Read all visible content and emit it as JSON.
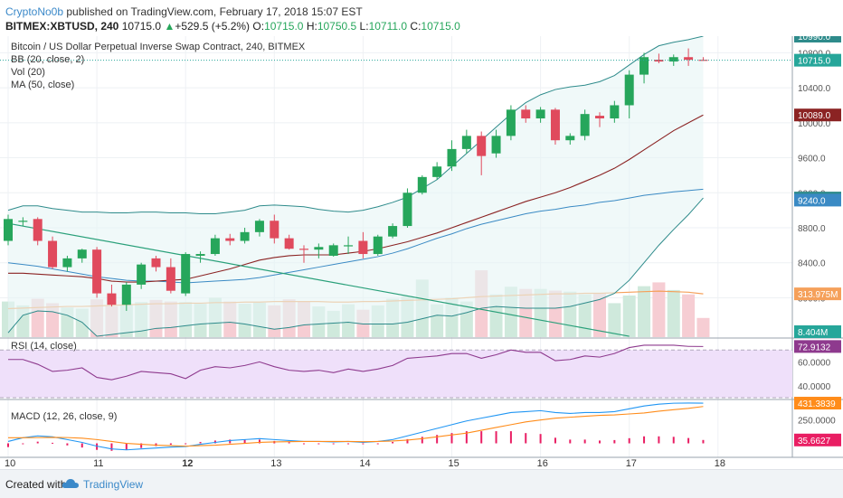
{
  "header": {
    "author": "CryptoNo0b",
    "published": "published on TradingView.com, February 17, 2018 15:07 EST",
    "symbol": "BITMEX:XBTUSD, 240",
    "last": "10715.0",
    "change_arrow": "▲",
    "change": "+529.5 (+5.2%)",
    "o_label": "O:",
    "o": "10715.0",
    "h_label": "H:",
    "h": "10750.5",
    "l_label": "L:",
    "l": "10711.0",
    "c_label": "C:",
    "c": "10715.0"
  },
  "legend": {
    "title": "Bitcoin / US Dollar Perpetual Inverse Swap Contract, 240, BITMEX",
    "bb": "BB (20, close, 2)",
    "vol": "Vol (20)",
    "ma": "MA (50, close)",
    "rsi": "RSI (14, close)",
    "macd": "MACD (12, 26, close, 9)"
  },
  "footer": {
    "created": "Created with",
    "brand": "TradingView"
  },
  "colors": {
    "up": "#26a65b",
    "down": "#e04a5d",
    "bb": "#2e8b8b",
    "bb_fill": "#e6f5f5",
    "ma": "#8b2323",
    "vol_ma": "#f5a05a",
    "rsi": "#8e3a8e",
    "rsi_fill": "#efe0fa",
    "macd": "#2196f3",
    "signal": "#ff8c1a",
    "hist": "#e91e63",
    "trendline": "#2aa07a"
  },
  "chart_data": [
    {
      "type": "candlestick",
      "title": "Bitcoin / US Dollar Perpetual Inverse Swap Contract, 240, BITMEX",
      "ylim": [
        7550,
        10990
      ],
      "yticks": [
        8000,
        8400,
        8800,
        9200,
        9600,
        10000,
        10400,
        10800
      ],
      "ytick_labels": [
        "8000.0",
        "8400.0",
        "8800.0",
        "9200.0",
        "9600.0",
        "10000.0",
        "10400.0",
        "10800.0"
      ],
      "x_labels": [
        {
          "i": 0,
          "label": "10",
          "bold": false
        },
        {
          "i": 6,
          "label": "11",
          "bold": false
        },
        {
          "i": 12,
          "label": "12",
          "bold": true
        },
        {
          "i": 18,
          "label": "13",
          "bold": false
        },
        {
          "i": 24,
          "label": "14",
          "bold": false
        },
        {
          "i": 30,
          "label": "15",
          "bold": false
        },
        {
          "i": 36,
          "label": "16",
          "bold": false
        },
        {
          "i": 42,
          "label": "17",
          "bold": false
        },
        {
          "i": 48,
          "label": "18",
          "bold": false
        }
      ],
      "candles": [
        {
          "o": 8650,
          "h": 8950,
          "l": 8600,
          "c": 8900
        },
        {
          "o": 8880,
          "h": 8920,
          "l": 8820,
          "c": 8880
        },
        {
          "o": 8900,
          "h": 8920,
          "l": 8600,
          "c": 8650
        },
        {
          "o": 8650,
          "h": 8700,
          "l": 8330,
          "c": 8350
        },
        {
          "o": 8350,
          "h": 8480,
          "l": 8300,
          "c": 8450
        },
        {
          "o": 8450,
          "h": 8560,
          "l": 8400,
          "c": 8550
        },
        {
          "o": 8550,
          "h": 8580,
          "l": 8000,
          "c": 8050
        },
        {
          "o": 8050,
          "h": 8150,
          "l": 7900,
          "c": 7920
        },
        {
          "o": 7920,
          "h": 8180,
          "l": 7850,
          "c": 8150
        },
        {
          "o": 8150,
          "h": 8400,
          "l": 8100,
          "c": 8380
        },
        {
          "o": 8450,
          "h": 8480,
          "l": 8300,
          "c": 8350
        },
        {
          "o": 8350,
          "h": 8450,
          "l": 8050,
          "c": 8080
        },
        {
          "o": 8050,
          "h": 8520,
          "l": 8020,
          "c": 8500
        },
        {
          "o": 8480,
          "h": 8530,
          "l": 8400,
          "c": 8500
        },
        {
          "o": 8500,
          "h": 8720,
          "l": 8480,
          "c": 8680
        },
        {
          "o": 8680,
          "h": 8730,
          "l": 8600,
          "c": 8650
        },
        {
          "o": 8650,
          "h": 8800,
          "l": 8620,
          "c": 8750
        },
        {
          "o": 8750,
          "h": 8900,
          "l": 8700,
          "c": 8880
        },
        {
          "o": 8880,
          "h": 8950,
          "l": 8620,
          "c": 8680
        },
        {
          "o": 8680,
          "h": 8720,
          "l": 8550,
          "c": 8560
        },
        {
          "o": 8560,
          "h": 8600,
          "l": 8400,
          "c": 8550
        },
        {
          "o": 8550,
          "h": 8620,
          "l": 8450,
          "c": 8580
        },
        {
          "o": 8480,
          "h": 8620,
          "l": 8470,
          "c": 8600
        },
        {
          "o": 8600,
          "h": 8700,
          "l": 8500,
          "c": 8600
        },
        {
          "o": 8650,
          "h": 8750,
          "l": 8450,
          "c": 8500
        },
        {
          "o": 8500,
          "h": 8720,
          "l": 8480,
          "c": 8700
        },
        {
          "o": 8700,
          "h": 8850,
          "l": 8680,
          "c": 8820
        },
        {
          "o": 8820,
          "h": 9250,
          "l": 8800,
          "c": 9200
        },
        {
          "o": 9200,
          "h": 9400,
          "l": 9180,
          "c": 9380
        },
        {
          "o": 9380,
          "h": 9550,
          "l": 9350,
          "c": 9500
        },
        {
          "o": 9500,
          "h": 9800,
          "l": 9450,
          "c": 9700
        },
        {
          "o": 9700,
          "h": 9920,
          "l": 9650,
          "c": 9850
        },
        {
          "o": 9850,
          "h": 9900,
          "l": 9400,
          "c": 9620
        },
        {
          "o": 9650,
          "h": 9920,
          "l": 9600,
          "c": 9850
        },
        {
          "o": 9850,
          "h": 10200,
          "l": 9800,
          "c": 10150
        },
        {
          "o": 10150,
          "h": 10200,
          "l": 10000,
          "c": 10050
        },
        {
          "o": 10050,
          "h": 10180,
          "l": 10000,
          "c": 10150
        },
        {
          "o": 10150,
          "h": 10170,
          "l": 9750,
          "c": 9800
        },
        {
          "o": 9800,
          "h": 9880,
          "l": 9750,
          "c": 9850
        },
        {
          "o": 9850,
          "h": 10150,
          "l": 9800,
          "c": 10100
        },
        {
          "o": 10080,
          "h": 10120,
          "l": 9950,
          "c": 10050
        },
        {
          "o": 10050,
          "h": 10250,
          "l": 10000,
          "c": 10200
        },
        {
          "o": 10200,
          "h": 10600,
          "l": 10050,
          "c": 10550
        },
        {
          "o": 10550,
          "h": 10800,
          "l": 10450,
          "c": 10750
        },
        {
          "o": 10720,
          "h": 10790,
          "l": 10680,
          "c": 10700
        },
        {
          "o": 10700,
          "h": 10780,
          "l": 10650,
          "c": 10750
        },
        {
          "o": 10750,
          "h": 10850,
          "l": 10650,
          "c": 10720
        },
        {
          "o": 10720,
          "h": 10750,
          "l": 10710,
          "c": 10715
        }
      ],
      "bb_upper": [
        9000,
        9050,
        9050,
        9020,
        9000,
        8980,
        8980,
        8970,
        8970,
        8980,
        8980,
        8970,
        8970,
        8960,
        8960,
        8980,
        9000,
        9050,
        9060,
        9050,
        9040,
        9010,
        8990,
        8980,
        9000,
        9040,
        9090,
        9150,
        9250,
        9350,
        9500,
        9650,
        9800,
        9950,
        10100,
        10230,
        10320,
        10380,
        10410,
        10430,
        10470,
        10540,
        10660,
        10780,
        10880,
        10920,
        10950,
        10990
      ],
      "bb_middle": [
        8400,
        8380,
        8360,
        8330,
        8300,
        8270,
        8240,
        8220,
        8200,
        8190,
        8190,
        8180,
        8170,
        8180,
        8190,
        8200,
        8210,
        8230,
        8260,
        8290,
        8320,
        8350,
        8380,
        8410,
        8440,
        8470,
        8510,
        8560,
        8620,
        8680,
        8730,
        8790,
        8840,
        8880,
        8920,
        8960,
        8990,
        9010,
        9040,
        9060,
        9090,
        9110,
        9140,
        9170,
        9190,
        9210,
        9225,
        9240
      ],
      "bb_lower": [
        7600,
        7800,
        7850,
        7840,
        7800,
        7720,
        7560,
        7580,
        7600,
        7620,
        7650,
        7660,
        7680,
        7700,
        7710,
        7720,
        7700,
        7670,
        7640,
        7660,
        7690,
        7700,
        7710,
        7720,
        7700,
        7700,
        7700,
        7720,
        7760,
        7800,
        7790,
        7830,
        7880,
        7900,
        7890,
        7880,
        7880,
        7880,
        7900,
        7940,
        7980,
        8050,
        8200,
        8400,
        8600,
        8780,
        8950,
        9140
      ],
      "ma50": [
        8280,
        8280,
        8270,
        8260,
        8250,
        8240,
        8220,
        8190,
        8180,
        8180,
        8190,
        8200,
        8210,
        8250,
        8290,
        8330,
        8380,
        8430,
        8460,
        8480,
        8490,
        8490,
        8490,
        8510,
        8530,
        8560,
        8600,
        8640,
        8690,
        8740,
        8800,
        8860,
        8920,
        8980,
        9040,
        9100,
        9150,
        9200,
        9260,
        9330,
        9400,
        9480,
        9580,
        9690,
        9800,
        9910,
        10000,
        10089
      ]
    },
    {
      "type": "bar",
      "title": "Vol (20)",
      "series_name": "volume",
      "max": 1700,
      "values": [
        650,
        580,
        700,
        620,
        540,
        520,
        690,
        560,
        590,
        640,
        680,
        650,
        640,
        610,
        720,
        650,
        610,
        630,
        580,
        690,
        650,
        560,
        480,
        600,
        500,
        580,
        700,
        750,
        1050,
        600,
        720,
        650,
        1220,
        780,
        920,
        880,
        880,
        850,
        830,
        780,
        800,
        620,
        760,
        930,
        1000,
        860,
        780,
        350
      ],
      "ma_values": [
        520,
        530,
        540,
        550,
        560,
        560,
        570,
        580,
        590,
        600,
        610,
        610,
        620,
        620,
        630,
        630,
        640,
        640,
        650,
        650,
        650,
        650,
        640,
        640,
        650,
        650,
        660,
        670,
        680,
        690,
        700,
        720,
        740,
        750,
        760,
        770,
        780,
        790,
        790,
        800,
        800,
        810,
        820,
        830,
        840,
        830,
        820,
        790
      ],
      "last_label": "313.975M",
      "bottom_label": "8.404M"
    },
    {
      "type": "line",
      "title": "RSI (14, close)",
      "ylim": [
        30,
        80
      ],
      "yticks": [
        40,
        60
      ],
      "ytick_labels": [
        "40.0000",
        "60.0000"
      ],
      "upper_band": 70,
      "lower_band": 30,
      "values": [
        62,
        62,
        58,
        52,
        53,
        55,
        47,
        45,
        48,
        52,
        51,
        50,
        46,
        53,
        56,
        55,
        57,
        60,
        56,
        53,
        52,
        53,
        51,
        54,
        52,
        54,
        57,
        63,
        64,
        65,
        67,
        67,
        63,
        66,
        70,
        68,
        68,
        61,
        62,
        65,
        64,
        67,
        72,
        74,
        74,
        74,
        73,
        72.9
      ],
      "last_label": "72.9132"
    },
    {
      "type": "line",
      "title": "MACD (12, 26, close, 9)",
      "ylim": [
        -150,
        470
      ],
      "yticks": [
        250
      ],
      "ytick_labels": [
        "250.0000"
      ],
      "macd": [
        20,
        60,
        80,
        70,
        40,
        10,
        -30,
        -60,
        -70,
        -60,
        -50,
        -40,
        -35,
        -10,
        10,
        30,
        40,
        50,
        40,
        30,
        20,
        20,
        15,
        20,
        10,
        20,
        40,
        80,
        120,
        160,
        200,
        240,
        270,
        300,
        330,
        340,
        350,
        330,
        320,
        330,
        330,
        340,
        370,
        400,
        420,
        430,
        432,
        431
      ],
      "signal": [
        60,
        60,
        62,
        64,
        62,
        55,
        40,
        20,
        0,
        -10,
        -20,
        -25,
        -30,
        -25,
        -20,
        -10,
        0,
        10,
        15,
        18,
        20,
        20,
        20,
        20,
        18,
        20,
        25,
        35,
        50,
        70,
        90,
        110,
        140,
        170,
        200,
        230,
        250,
        270,
        280,
        290,
        300,
        305,
        315,
        325,
        345,
        360,
        375,
        395
      ],
      "hist": [
        -40,
        0,
        18,
        6,
        -22,
        -45,
        -70,
        -80,
        -70,
        -50,
        -30,
        -15,
        -5,
        15,
        30,
        40,
        40,
        40,
        25,
        12,
        0,
        0,
        -5,
        0,
        -8,
        0,
        15,
        45,
        70,
        90,
        110,
        130,
        130,
        130,
        130,
        110,
        100,
        60,
        40,
        40,
        30,
        35,
        55,
        75,
        75,
        70,
        57,
        36
      ],
      "macd_label": "431.3839",
      "hist_label": "35.6627"
    }
  ]
}
